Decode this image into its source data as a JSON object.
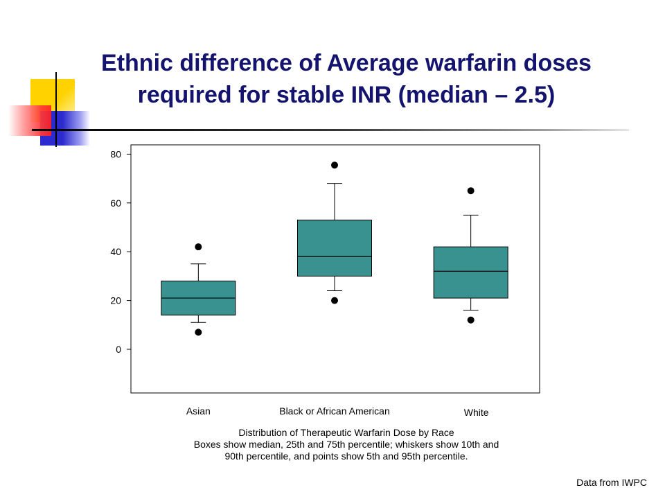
{
  "slide": {
    "title_lines": [
      "Ethnic difference of Average warfarin doses",
      "required for stable INR  (median – 2.5)"
    ],
    "caption_lines": [
      "Distribution of Therapeutic Warfarin Dose by Race",
      "Boxes show median, 25th and 75th percentile; whiskers show 10th and",
      "90th percentile, and points show 5th and 95th percentile."
    ],
    "source": "Data from IWPC",
    "colors": {
      "title": "#14146e",
      "box_fill": "#3a9290",
      "deco_yellow": "#ffd200",
      "deco_blue": "#2b2bd0",
      "deco_red": "#ff3a3a"
    }
  },
  "chart_data": {
    "type": "box",
    "title": "Distribution of Therapeutic Warfarin Dose by Race",
    "xlabel": "",
    "ylabel": "",
    "ylim": [
      -18,
      84
    ],
    "yticks": [
      0,
      20,
      40,
      60,
      80
    ],
    "grid": false,
    "categories": [
      "Asian",
      "Black or African American",
      "White"
    ],
    "boxes": [
      {
        "category": "Asian",
        "p5": 7,
        "p10": 11,
        "q1": 14,
        "median": 21,
        "q3": 28,
        "p90": 35,
        "p95": 42
      },
      {
        "category": "Black or African American",
        "p5": 20,
        "p10": 24,
        "q1": 30,
        "median": 38,
        "q3": 53,
        "p90": 68,
        "p95": 75.5
      },
      {
        "category": "White",
        "p5": 12,
        "p10": 16,
        "q1": 21,
        "median": 32,
        "q3": 42,
        "p90": 55,
        "p95": 65
      }
    ]
  }
}
